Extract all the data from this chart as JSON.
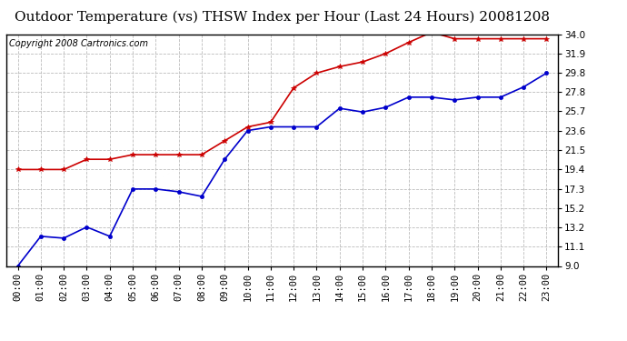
{
  "title": "Outdoor Temperature (vs) THSW Index per Hour (Last 24 Hours) 20081208",
  "copyright": "Copyright 2008 Cartronics.com",
  "x_labels": [
    "00:00",
    "01:00",
    "02:00",
    "03:00",
    "04:00",
    "05:00",
    "06:00",
    "07:00",
    "08:00",
    "09:00",
    "10:00",
    "11:00",
    "12:00",
    "13:00",
    "14:00",
    "15:00",
    "16:00",
    "17:00",
    "18:00",
    "19:00",
    "20:00",
    "21:00",
    "22:00",
    "23:00"
  ],
  "blue_data": [
    9.0,
    12.2,
    12.0,
    13.2,
    12.2,
    17.3,
    17.3,
    17.0,
    16.5,
    20.5,
    23.6,
    24.0,
    24.0,
    24.0,
    26.0,
    25.6,
    26.1,
    27.2,
    27.2,
    26.9,
    27.2,
    27.2,
    28.3,
    29.8
  ],
  "red_data": [
    19.4,
    19.4,
    19.4,
    20.5,
    20.5,
    21.0,
    21.0,
    21.0,
    21.0,
    22.5,
    24.0,
    24.5,
    28.2,
    29.8,
    30.5,
    31.0,
    31.9,
    33.1,
    34.2,
    33.5,
    33.5,
    33.5,
    33.5,
    33.5
  ],
  "y_ticks": [
    9.0,
    11.1,
    13.2,
    15.2,
    17.3,
    19.4,
    21.5,
    23.6,
    25.7,
    27.8,
    29.8,
    31.9,
    34.0
  ],
  "y_min": 9.0,
  "y_max": 34.0,
  "blue_color": "#0000cc",
  "red_color": "#cc0000",
  "grid_color": "#bbbbbb",
  "background_color": "#ffffff",
  "title_fontsize": 11,
  "copyright_fontsize": 7,
  "tick_fontsize": 7.5
}
